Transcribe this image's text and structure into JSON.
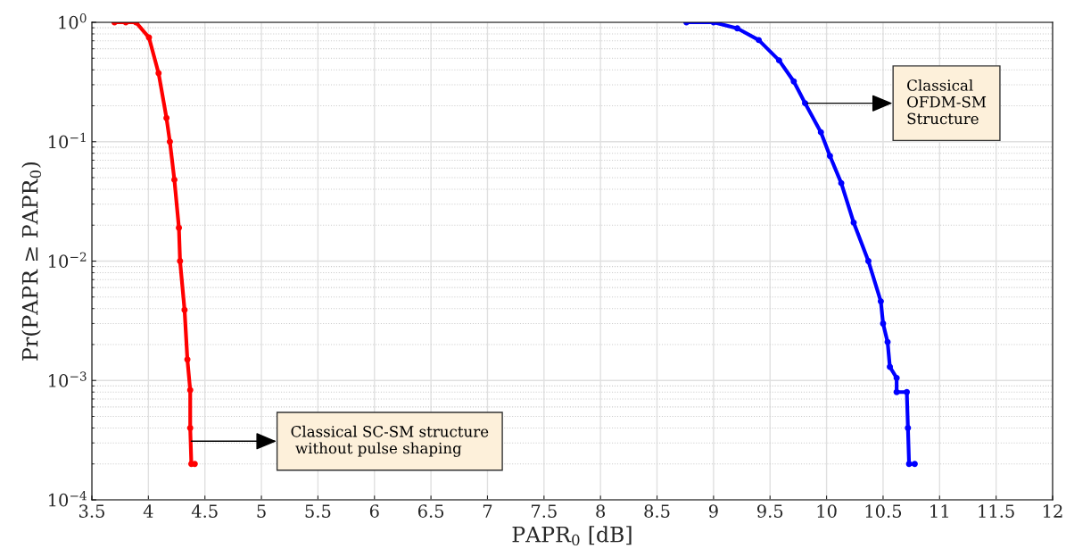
{
  "chart_data": {
    "type": "line",
    "xlabel": "PAPR$_{0}$ [dB]",
    "ylabel": "Pr(PAPR ≥ PAPR$_{0}$)",
    "log": "y",
    "grid": true,
    "marker": "circle",
    "line_style": "solid",
    "xlim": [
      3.5,
      12
    ],
    "xticks": [
      3.5,
      4,
      4.5,
      5,
      5.5,
      6,
      6.5,
      7,
      7.5,
      8,
      8.5,
      9,
      9.5,
      10,
      10.5,
      11,
      11.5,
      12
    ],
    "ylim": [
      0.0001,
      1
    ],
    "yticks": [
      {
        "value": 1,
        "label": "10$^{0}$"
      },
      {
        "value": 0.1,
        "label": "10$^{−1}$"
      },
      {
        "value": 0.01,
        "label": "10$^{−2}$"
      },
      {
        "value": 0.001,
        "label": "10$^{−3}$"
      },
      {
        "value": 0.0001,
        "label": "10$^{−4}$"
      }
    ],
    "series": [
      {
        "color": "#ff0000",
        "x": [
          3.7,
          3.8,
          3.89,
          4.005,
          4.09,
          4.16,
          4.19,
          4.23,
          4.27,
          4.28,
          4.32,
          4.345,
          4.37,
          4.37,
          4.38,
          4.41
        ],
        "values": [
          1,
          1,
          1,
          0.746,
          0.375,
          0.158,
          0.1,
          0.048,
          0.019,
          0.01,
          0.0039,
          0.0015,
          0.00083,
          0.0004,
          0.0002,
          0.0002
        ]
      },
      {
        "color": "#0000ff",
        "x": [
          8.76,
          9.0,
          9.21,
          9.4,
          9.58,
          9.71,
          9.81,
          9.95,
          10.03,
          10.13,
          10.24,
          10.37,
          10.48,
          10.5,
          10.54,
          10.56,
          10.62,
          10.62,
          10.71,
          10.72,
          10.73,
          10.78
        ],
        "values": [
          1,
          1,
          0.89,
          0.71,
          0.48,
          0.32,
          0.21,
          0.12,
          0.076,
          0.045,
          0.021,
          0.01,
          0.0046,
          0.003,
          0.0021,
          0.0013,
          0.00105,
          0.0008,
          0.0008,
          0.0004,
          0.0002,
          0.0002
        ]
      }
    ],
    "annotations": [
      {
        "text": "Classical SC-SM structure\n without pulse shaping",
        "x": 4.38,
        "y": 0.00031
      },
      {
        "text": "Classical\nOFDM-SM\nStructure",
        "x": 9.83,
        "y": 0.21
      }
    ]
  }
}
